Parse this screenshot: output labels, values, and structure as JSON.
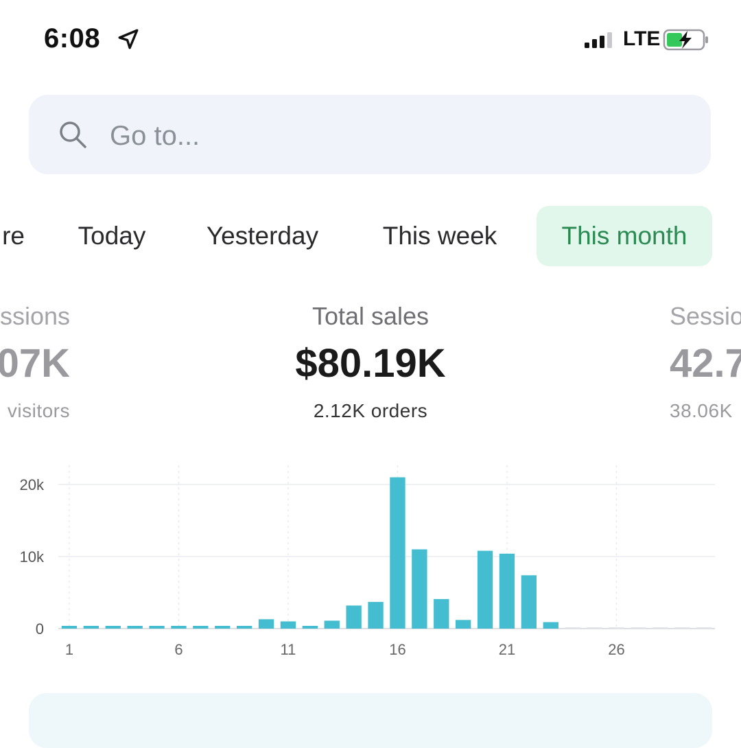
{
  "status_bar": {
    "time": "6:08",
    "network": "LTE",
    "icons": [
      "location-arrow-icon",
      "signal-icon",
      "battery-charging-icon"
    ]
  },
  "search": {
    "placeholder": "Go to...",
    "icon": "search-icon"
  },
  "tabs": [
    {
      "label": "re",
      "selected": false
    },
    {
      "label": "Today",
      "selected": false
    },
    {
      "label": "Yesterday",
      "selected": false
    },
    {
      "label": "This week",
      "selected": false
    },
    {
      "label": "This month",
      "selected": true
    }
  ],
  "metrics": {
    "left": {
      "label": "ssions",
      "value": "07K",
      "sub": "visitors"
    },
    "center": {
      "label": "Total sales",
      "value": "$80.19K",
      "sub": "2.12K orders"
    },
    "right": {
      "label": "Sessio",
      "value": "42.7",
      "sub": "38.06K"
    }
  },
  "colors": {
    "bar": "#44bdd0",
    "selected_tab_bg": "#e1f7eb",
    "selected_tab_text": "#2a8a52",
    "search_bg": "#f0f4fa"
  },
  "chart_data": {
    "type": "bar",
    "x": [
      1,
      2,
      3,
      4,
      5,
      6,
      7,
      8,
      9,
      10,
      11,
      12,
      13,
      14,
      15,
      16,
      17,
      18,
      19,
      20,
      21,
      22,
      23,
      24,
      25,
      26,
      27,
      28,
      29,
      30
    ],
    "values": [
      200,
      200,
      200,
      200,
      200,
      200,
      200,
      200,
      200,
      1300,
      1000,
      200,
      1100,
      3200,
      3700,
      21000,
      11000,
      4100,
      1200,
      10800,
      10400,
      7400,
      900,
      0,
      0,
      0,
      0,
      0,
      0,
      0
    ],
    "x_tick_labels": [
      "1",
      "6",
      "11",
      "16",
      "21",
      "26"
    ],
    "x_ticks": [
      1,
      6,
      11,
      16,
      21,
      26
    ],
    "y_tick_labels": [
      "0",
      "10k",
      "20k"
    ],
    "y_ticks": [
      0,
      10000,
      20000
    ],
    "ylim": [
      0,
      22000
    ],
    "grid": true
  }
}
